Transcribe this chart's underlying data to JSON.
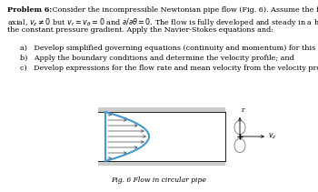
{
  "fig_caption": "Fig. 6 Flow in circular pipe",
  "pipe_wall_color": "#cccccc",
  "pipe_wall_edge": "#aaaaaa",
  "flow_line_color": "#666666",
  "parabola_color": "#4499cc",
  "arrow_color": "#444444",
  "bg_color": "#ffffff",
  "vz_label": "$v_z$",
  "r_label": "r",
  "fs_text": 5.8,
  "fs_caption": 5.5
}
